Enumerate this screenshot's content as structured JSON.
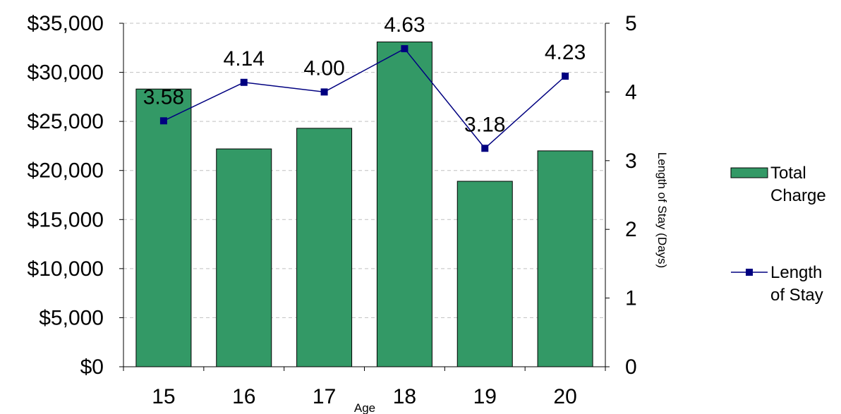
{
  "chart_data": {
    "type": "bar",
    "categories": [
      "15",
      "16",
      "17",
      "18",
      "19",
      "20"
    ],
    "xlabel": "Age",
    "series": [
      {
        "name": "Total Charge",
        "type": "bar",
        "axis": "left",
        "color": "#339966",
        "values": [
          28300,
          22200,
          24300,
          33100,
          18900,
          22000
        ]
      },
      {
        "name": "Length of Stay",
        "type": "line",
        "axis": "right",
        "color": "#000080",
        "values": [
          3.58,
          4.14,
          4.0,
          4.63,
          3.18,
          4.23
        ],
        "data_labels": [
          "3.58",
          "4.14",
          "4.00",
          "4.63",
          "3.18",
          "4.23"
        ]
      }
    ],
    "y_left": {
      "min": 0,
      "max": 35000,
      "step": 5000,
      "tick_labels": [
        "$0",
        "$5,000",
        "$10,000",
        "$15,000",
        "$20,000",
        "$25,000",
        "$30,000",
        "$35,000"
      ]
    },
    "y_right": {
      "label": "Length of Stay (Days)",
      "min": 0,
      "max": 5,
      "step": 1,
      "tick_labels": [
        "0",
        "1",
        "2",
        "3",
        "4",
        "5"
      ]
    },
    "grid": true,
    "legend": {
      "placement": "right",
      "entries": [
        {
          "line1": "Total",
          "line2": "Charge"
        },
        {
          "line1": "Length",
          "line2": "of Stay"
        }
      ]
    }
  }
}
